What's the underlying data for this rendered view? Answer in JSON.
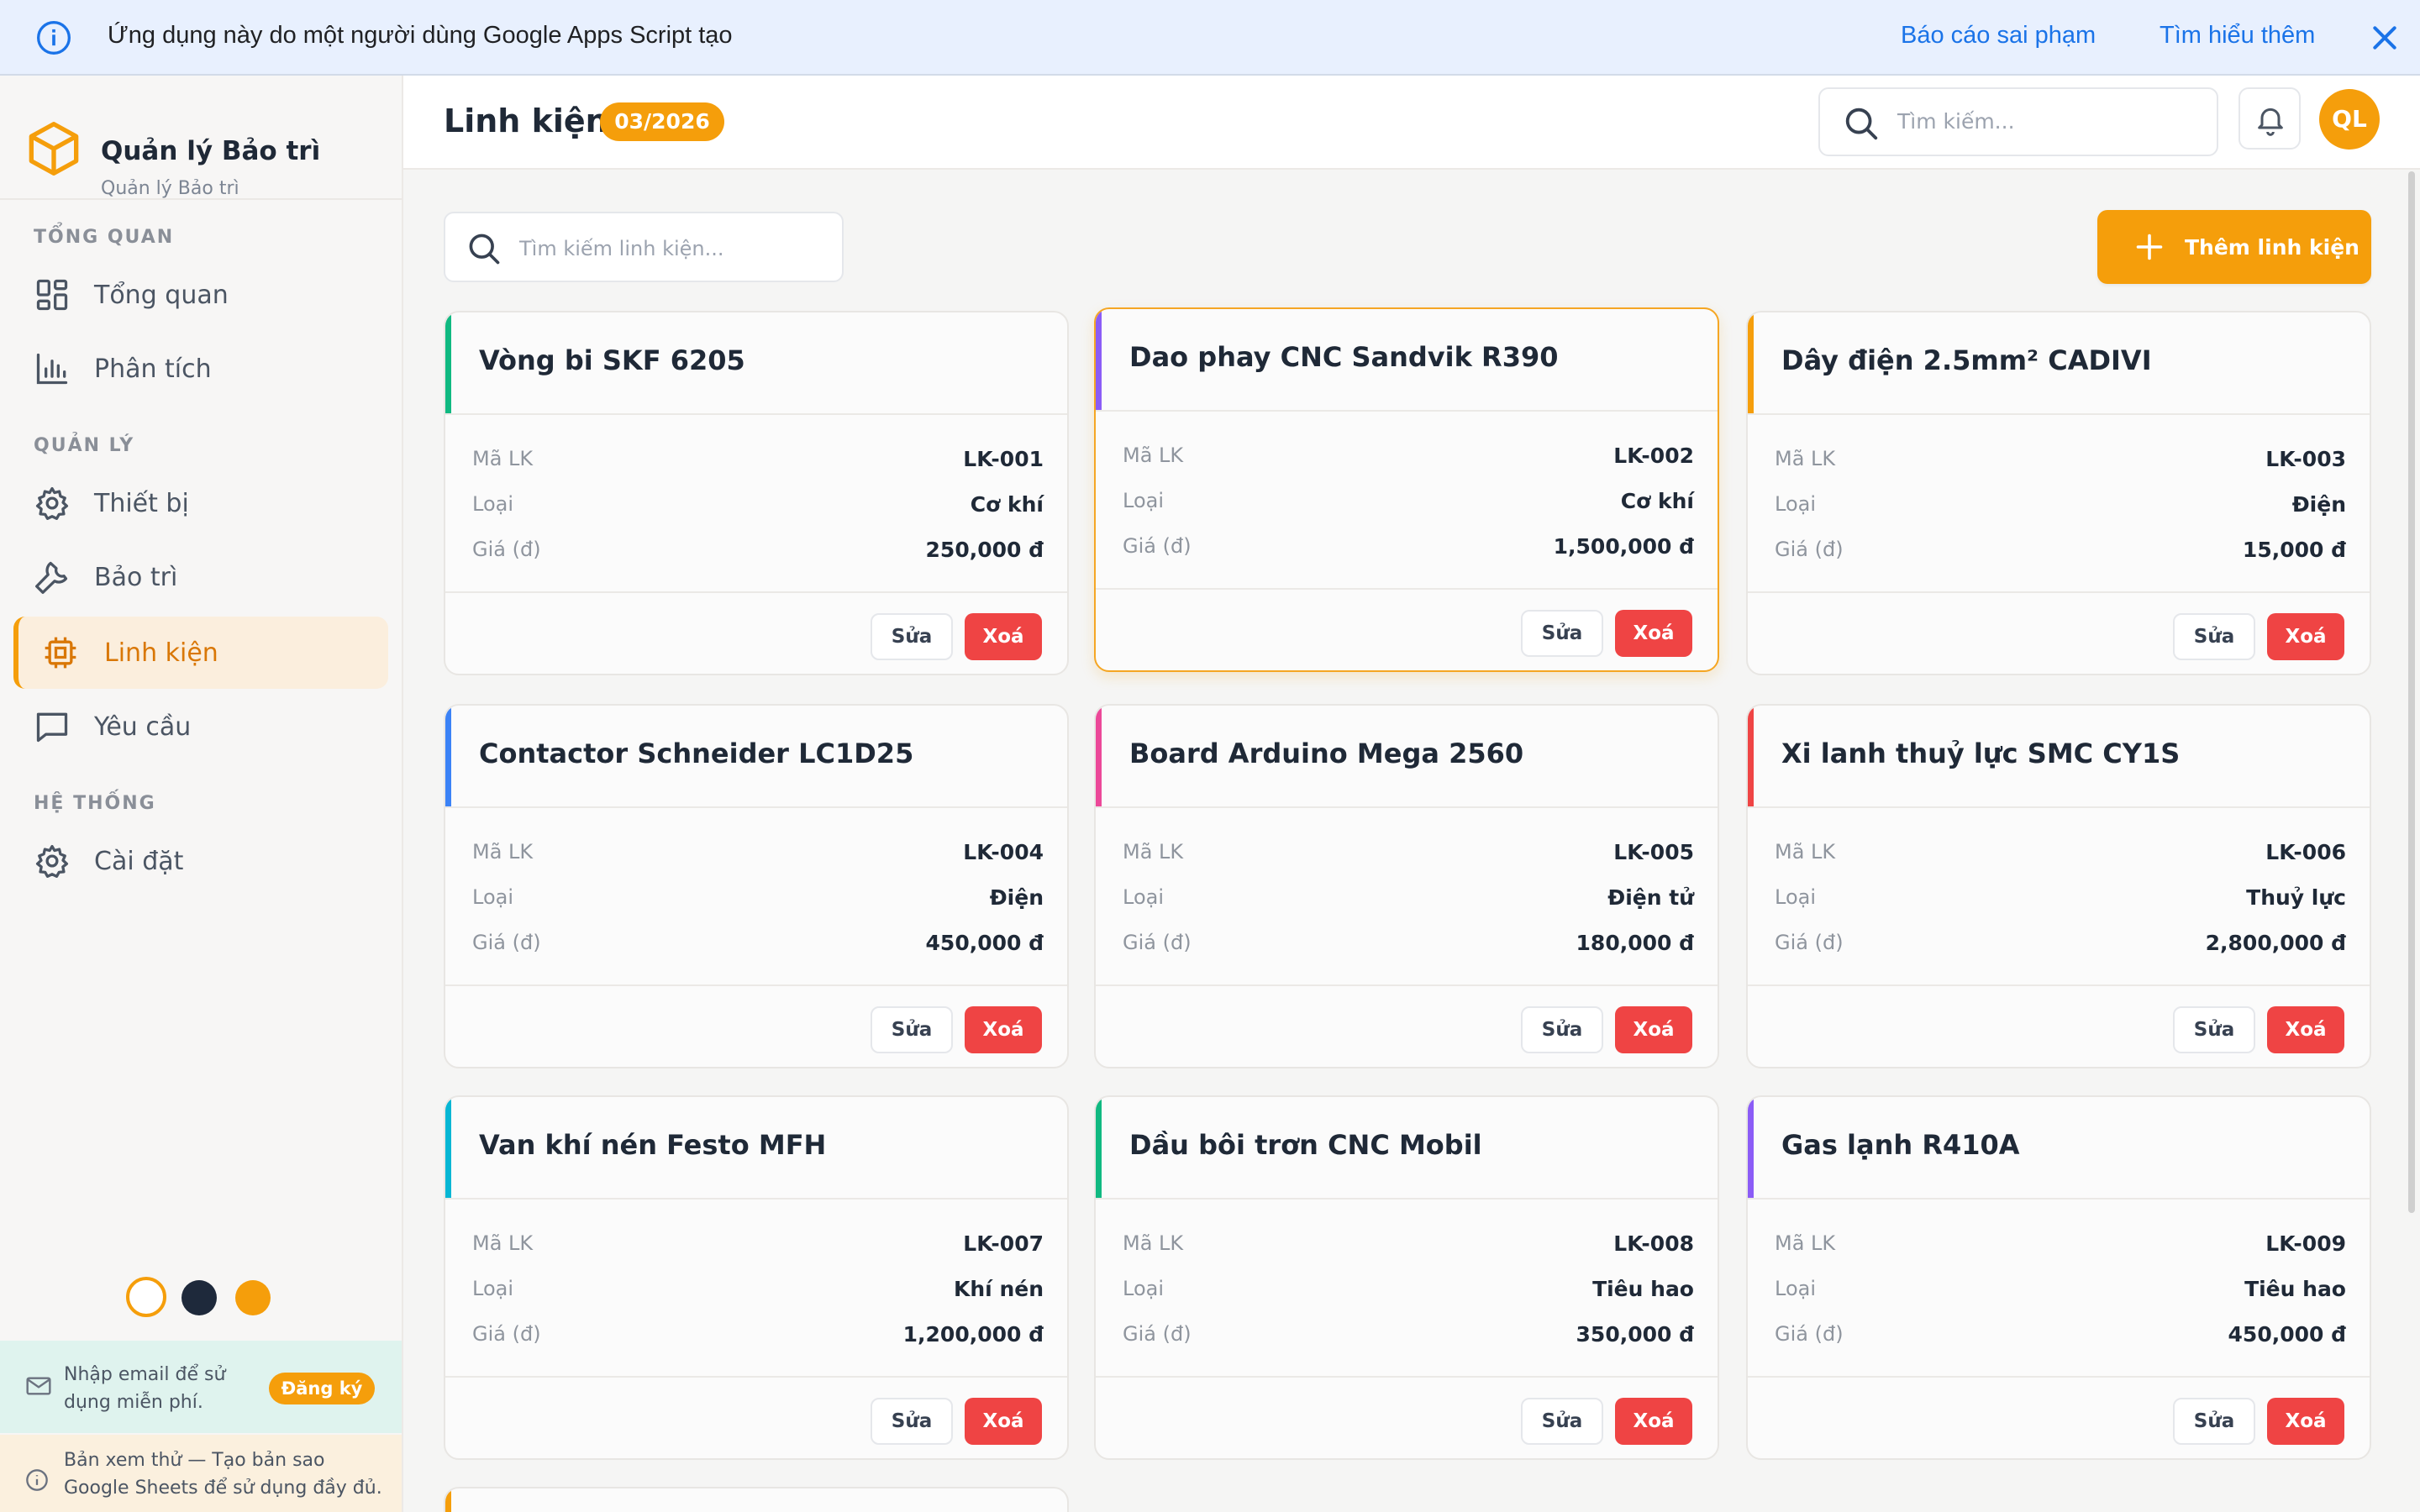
{
  "banner": {
    "message": "Ứng dụng này do một người dùng Google Apps Script tạo",
    "report_link": "Báo cáo sai phạm",
    "learn_more_link": "Tìm hiểu thêm"
  },
  "sidebar": {
    "brand_title": "Quản lý Bảo trì",
    "brand_subtitle": "Quản lý Bảo trì",
    "sections": {
      "overview": "TỔNG QUAN",
      "manage": "QUẢN LÝ",
      "system": "HỆ THỐNG"
    },
    "items": [
      {
        "label": "Tổng quan",
        "icon": "grid-icon"
      },
      {
        "label": "Phân tích",
        "icon": "bar-chart-icon"
      },
      {
        "label": "Thiết bị",
        "icon": "gear-icon"
      },
      {
        "label": "Bảo trì",
        "icon": "wrench-icon"
      },
      {
        "label": "Linh kiện",
        "icon": "chip-icon",
        "active": true
      },
      {
        "label": "Yêu cầu",
        "icon": "message-icon"
      },
      {
        "label": "Cài đặt",
        "icon": "settings-icon"
      }
    ],
    "theme_colors": [
      "#ffffff",
      "#1e293b",
      "#f59e0b"
    ],
    "email_prompt": "Nhập email để sử dụng miễn phí.",
    "register_label": "Đăng ký",
    "preview_note": "Bản xem thử — Tạo bản sao Google Sheets để sử dụng đầy đủ."
  },
  "header": {
    "title": "Linh kiện",
    "badge": "03/2026",
    "search_placeholder": "Tìm kiếm...",
    "avatar_initials": "QL"
  },
  "toolbar": {
    "search_placeholder": "Tìm kiếm linh kiện...",
    "add_label": "Thêm linh kiện"
  },
  "field_labels": {
    "code": "Mã LK",
    "type": "Loại",
    "price": "Giá (đ)"
  },
  "buttons": {
    "edit": "Sửa",
    "delete": "Xoá"
  },
  "colors": {
    "accent": "#f59e0b",
    "danger": "#ef4444"
  },
  "parts": [
    {
      "name": "Vòng bi SKF 6205",
      "code": "LK-001",
      "type": "Cơ khí",
      "price": "250,000 đ",
      "color": "#10b981"
    },
    {
      "name": "Dao phay CNC Sandvik R390",
      "code": "LK-002",
      "type": "Cơ khí",
      "price": "1,500,000 đ",
      "color": "#8b5cf6"
    },
    {
      "name": "Dây điện 2.5mm² CADIVI",
      "code": "LK-003",
      "type": "Điện",
      "price": "15,000 đ",
      "color": "#f59e0b"
    },
    {
      "name": "Contactor Schneider LC1D25",
      "code": "LK-004",
      "type": "Điện",
      "price": "450,000 đ",
      "color": "#3b82f6"
    },
    {
      "name": "Board Arduino Mega 2560",
      "code": "LK-005",
      "type": "Điện tử",
      "price": "180,000 đ",
      "color": "#ec4899"
    },
    {
      "name": "Xi lanh thuỷ lực SMC CY1S",
      "code": "LK-006",
      "type": "Thuỷ lực",
      "price": "2,800,000 đ",
      "color": "#ef4444"
    },
    {
      "name": "Van khí nén Festo MFH",
      "code": "LK-007",
      "type": "Khí nén",
      "price": "1,200,000 đ",
      "color": "#06b6d4"
    },
    {
      "name": "Dầu bôi trơn CNC Mobil",
      "code": "LK-008",
      "type": "Tiêu hao",
      "price": "350,000 đ",
      "color": "#10b981"
    },
    {
      "name": "Gas lạnh R410A",
      "code": "LK-009",
      "type": "Tiêu hao",
      "price": "450,000 đ",
      "color": "#8b5cf6"
    }
  ]
}
